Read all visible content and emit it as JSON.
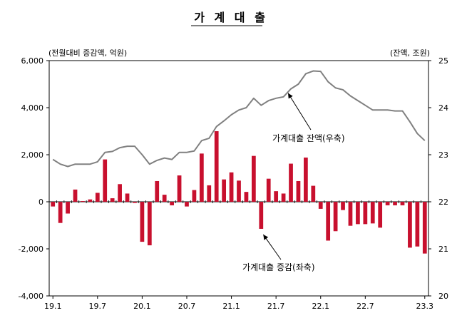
{
  "chart_data": {
    "type": "bar+line",
    "title": "가 계 대 출",
    "left_axis_label": "(전월대비 증감액, 억원)",
    "right_axis_label": "(잔액, 조원)",
    "left_ylim": [
      -4000,
      6000
    ],
    "right_ylim": [
      20,
      25
    ],
    "left_ticks": [
      -4000,
      -2000,
      0,
      2000,
      4000,
      6000
    ],
    "left_tick_labels": [
      "-4,000",
      "-2,000",
      "0",
      "2,000",
      "4,000",
      "6,000"
    ],
    "right_ticks": [
      20,
      21,
      22,
      23,
      24,
      25
    ],
    "right_tick_labels": [
      "20",
      "21",
      "22",
      "23",
      "24",
      "25"
    ],
    "x_tick_labels": [
      "19.1",
      "19.7",
      "20.1",
      "20.7",
      "21.1",
      "21.7",
      "22.1",
      "22.7",
      "23.3"
    ],
    "x_tick_indices": [
      0,
      6,
      12,
      18,
      24,
      30,
      36,
      42,
      50
    ],
    "categories": [
      "19.1",
      "19.2",
      "19.3",
      "19.4",
      "19.5",
      "19.6",
      "19.7",
      "19.8",
      "19.9",
      "19.10",
      "19.11",
      "19.12",
      "20.1",
      "20.2",
      "20.3",
      "20.4",
      "20.5",
      "20.6",
      "20.7",
      "20.8",
      "20.9",
      "20.10",
      "20.11",
      "20.12",
      "21.1",
      "21.2",
      "21.3",
      "21.4",
      "21.5",
      "21.6",
      "21.7",
      "21.8",
      "21.9",
      "21.10",
      "21.11",
      "21.12",
      "22.1",
      "22.2",
      "22.3",
      "22.4",
      "22.5",
      "22.6",
      "22.7",
      "22.8",
      "22.9",
      "22.10",
      "22.11",
      "22.12",
      "23.1",
      "23.2",
      "23.3"
    ],
    "series": [
      {
        "name": "가계대출 증감(좌축)",
        "type": "bar",
        "axis": "left",
        "color": "#c8102e",
        "values": [
          -200,
          -900,
          -500,
          520,
          30,
          100,
          380,
          1800,
          150,
          750,
          350,
          -50,
          -1700,
          -1850,
          880,
          300,
          -150,
          1120,
          -200,
          500,
          2050,
          700,
          3000,
          950,
          1250,
          900,
          420,
          1950,
          -1150,
          980,
          450,
          350,
          1620,
          880,
          1880,
          680,
          -300,
          -1650,
          -1250,
          -350,
          -1020,
          -950,
          -950,
          -920,
          -1100,
          -150,
          -150,
          -150,
          -1950,
          -1900,
          -2200
        ]
      },
      {
        "name": "가계대출 잔액(우축)",
        "type": "line",
        "axis": "right",
        "color": "#808080",
        "values": [
          22.9,
          22.8,
          22.75,
          22.8,
          22.8,
          22.8,
          22.85,
          23.05,
          23.07,
          23.15,
          23.18,
          23.18,
          23.0,
          22.8,
          22.88,
          22.93,
          22.9,
          23.05,
          23.05,
          23.08,
          23.3,
          23.35,
          23.6,
          23.72,
          23.85,
          23.95,
          24.0,
          24.2,
          24.05,
          24.15,
          24.2,
          24.23,
          24.4,
          24.5,
          24.72,
          24.78,
          24.77,
          24.55,
          24.42,
          24.38,
          24.25,
          24.15,
          24.05,
          23.95,
          23.95,
          23.95,
          23.93,
          23.93,
          23.7,
          23.45,
          23.3
        ]
      }
    ],
    "annotations": [
      {
        "text": "가계대출 잔액(우축)",
        "target_series": 1,
        "target_index": 32
      },
      {
        "text": "가계대출 증감(좌축)",
        "target_series": 0,
        "target_index": 28
      }
    ]
  }
}
